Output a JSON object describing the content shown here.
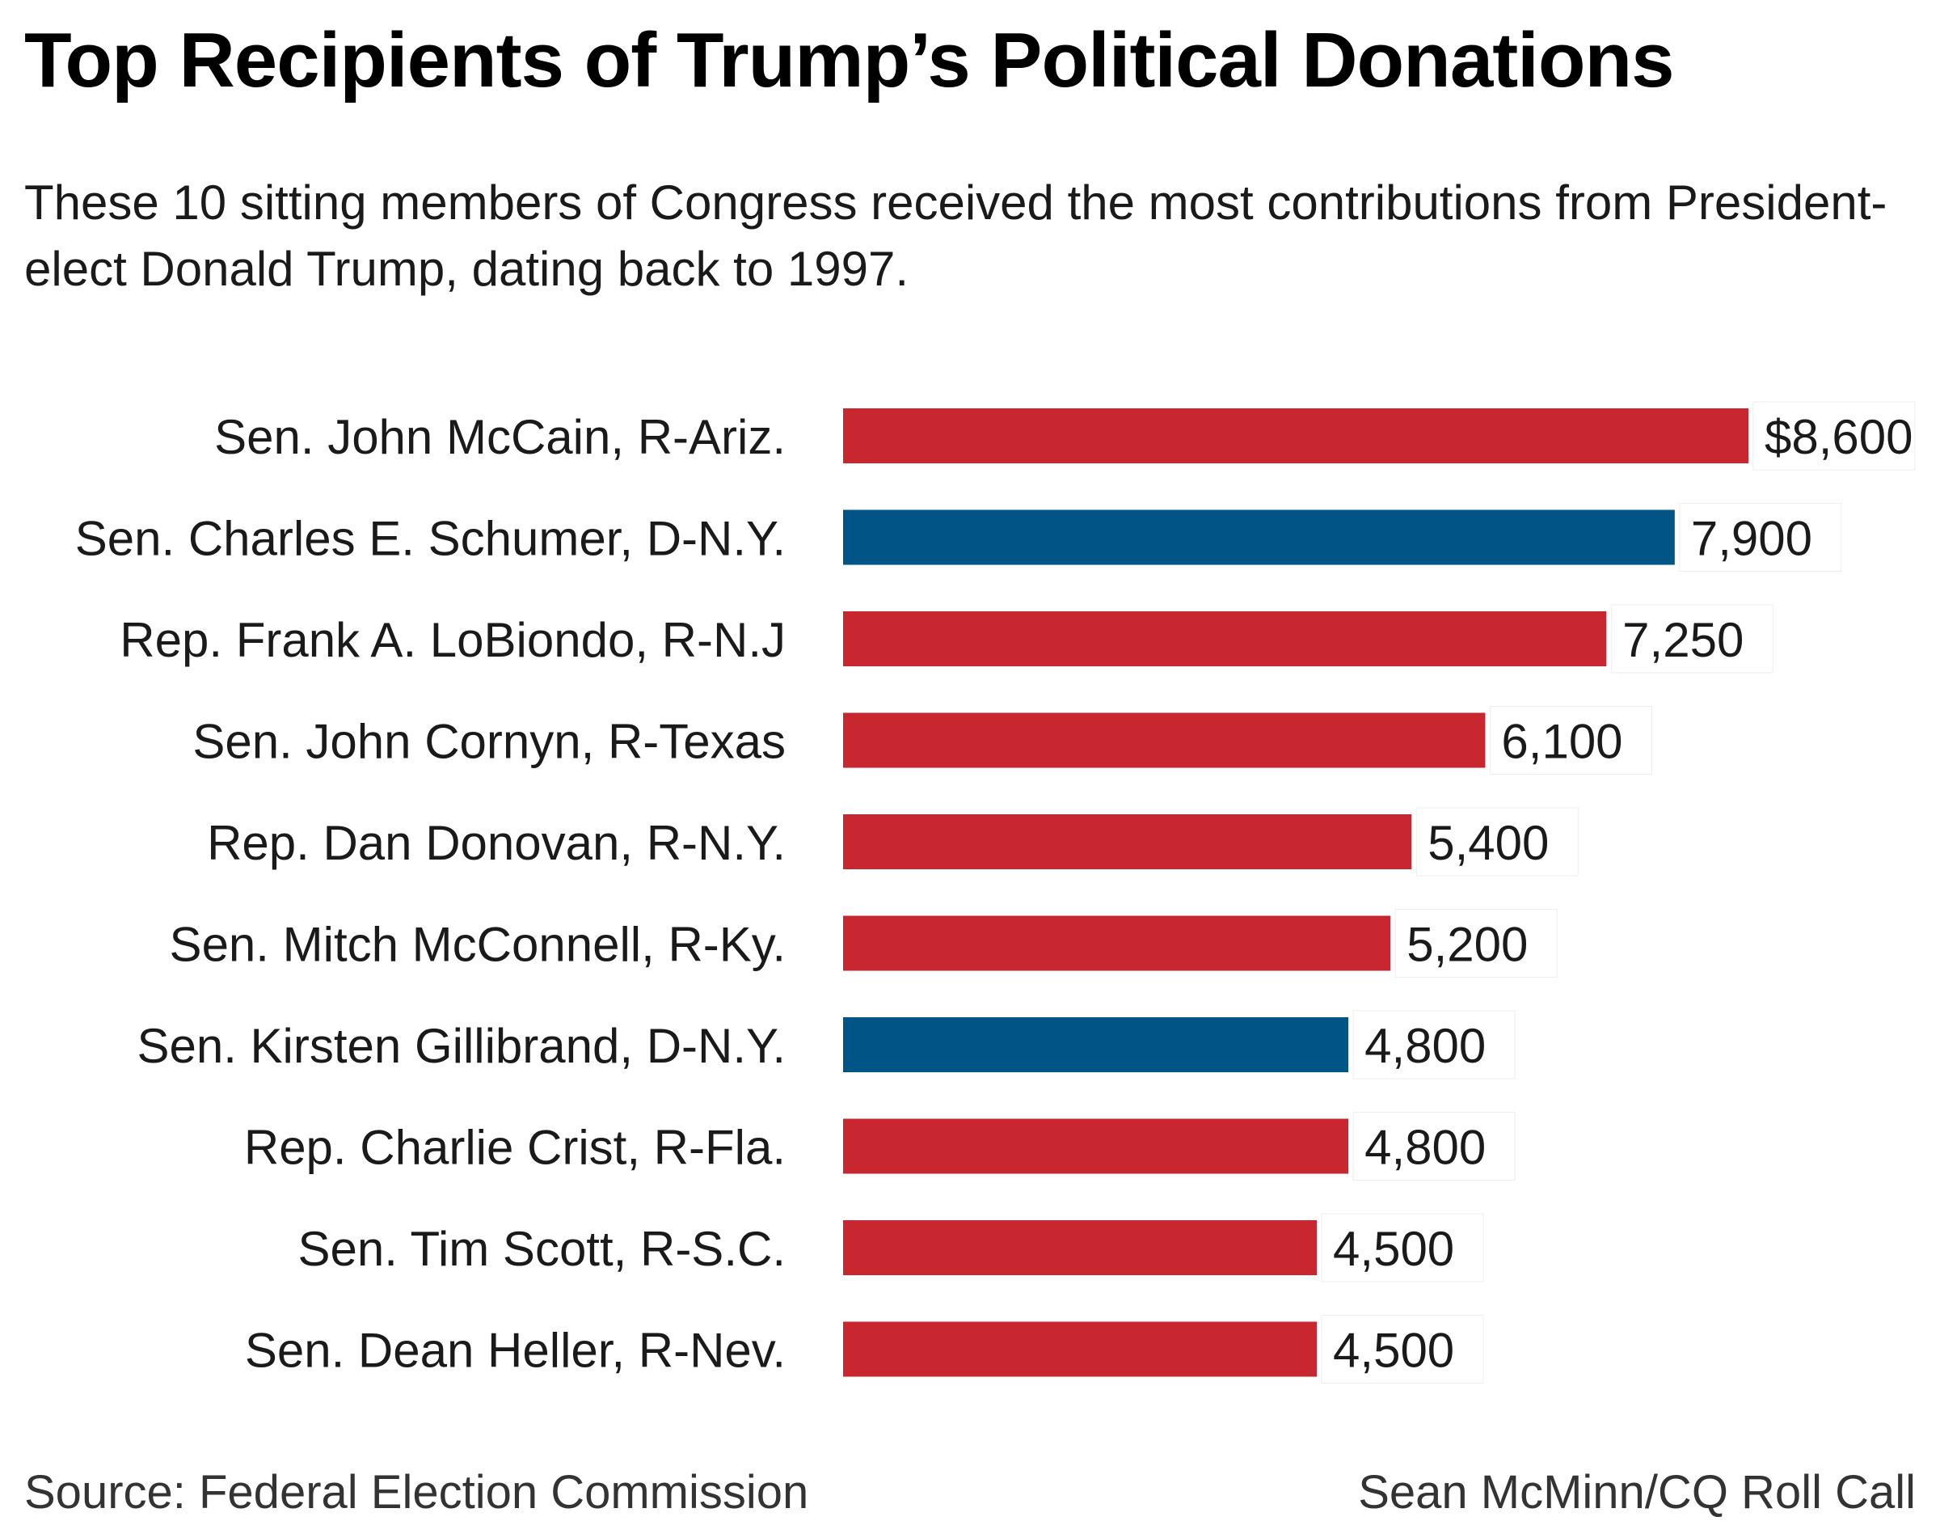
{
  "header": {
    "title": "Top Recipients of Trump’s Political Donations",
    "subtitle": "These 10 sitting members of Congress received the most contributions from President-elect Donald Trump, dating back to 1997."
  },
  "footer": {
    "source": "Source: Federal Election Commission",
    "credit": "Sean McMinn/CQ Roll Call"
  },
  "colors": {
    "republican": "#c8272f",
    "democrat": "#005587"
  },
  "chart_data": {
    "type": "bar",
    "orientation": "horizontal",
    "title": "Top Recipients of Trump’s Political Donations",
    "xlabel": "",
    "ylabel": "",
    "xlim": [
      0,
      8600
    ],
    "grid": false,
    "categories": [
      "Sen. John McCain, R-Ariz.",
      "Sen. Charles E. Schumer, D-N.Y.",
      "Rep. Frank A. LoBiondo, R-N.J",
      "Sen. John Cornyn, R-Texas",
      "Rep. Dan Donovan, R-N.Y.",
      "Sen. Mitch McConnell, R-Ky.",
      "Sen. Kirsten Gillibrand, D-N.Y.",
      "Rep. Charlie Crist, R-Fla.",
      "Sen. Tim Scott, R-S.C.",
      "Sen. Dean Heller, R-Nev."
    ],
    "values": [
      8600,
      7900,
      7250,
      6100,
      5400,
      5200,
      4800,
      4800,
      4500,
      4500
    ],
    "value_labels": [
      "$8,600",
      "7,900",
      "7,250",
      "6,100",
      "5,400",
      "5,200",
      "4,800",
      "4,800",
      "4,500",
      "4,500"
    ],
    "party": [
      "R",
      "D",
      "R",
      "R",
      "R",
      "R",
      "D",
      "R",
      "R",
      "R"
    ]
  }
}
